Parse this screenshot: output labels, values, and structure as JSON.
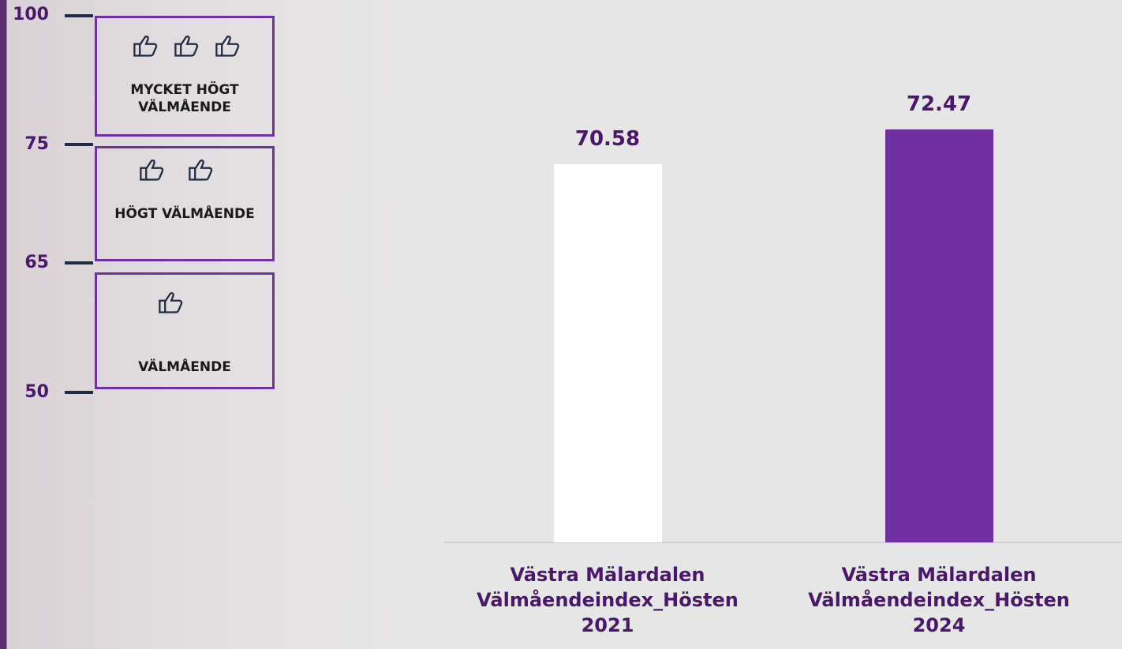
{
  "chart_data": {
    "type": "bar",
    "categories": [
      "Västra Mälardalen Välmåendeindex_Hösten 2021",
      "Västra Mälardalen Välmåendeindex_Hösten 2024"
    ],
    "series": [
      {
        "values": [
          70.58,
          72.47
        ],
        "colors": [
          "#ffffff",
          "#7030a0"
        ]
      }
    ],
    "ylim": [
      50,
      75
    ]
  },
  "scale": {
    "ticks": [
      100,
      75,
      65,
      50
    ],
    "bands": [
      {
        "label": "MYCKET HÖGT VÄLMÅENDE"
      },
      {
        "label": "HÖGT VÄLMÅENDE"
      },
      {
        "label": "VÄLMÅENDE"
      }
    ]
  }
}
